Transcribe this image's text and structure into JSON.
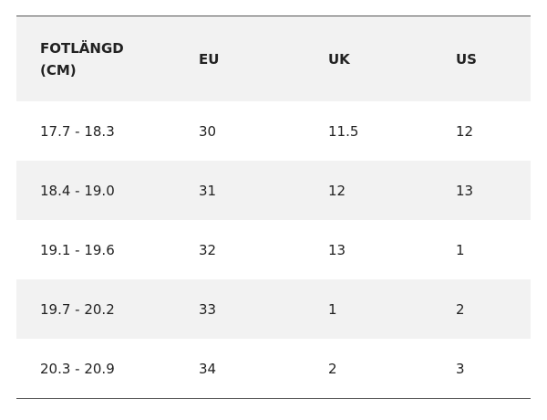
{
  "table": {
    "header": [
      "FOTLÄNGD (CM)",
      "EU",
      "UK",
      "US"
    ],
    "rows": [
      [
        "17.7 - 18.3",
        "30",
        "11.5",
        "12"
      ],
      [
        "18.4 - 19.0",
        "31",
        "12",
        "13"
      ],
      [
        "19.1 - 19.6",
        "32",
        "13",
        "1"
      ],
      [
        "19.7 - 20.2",
        "33",
        "1",
        "2"
      ],
      [
        "20.3 - 20.9",
        "34",
        "2",
        "3"
      ]
    ]
  }
}
